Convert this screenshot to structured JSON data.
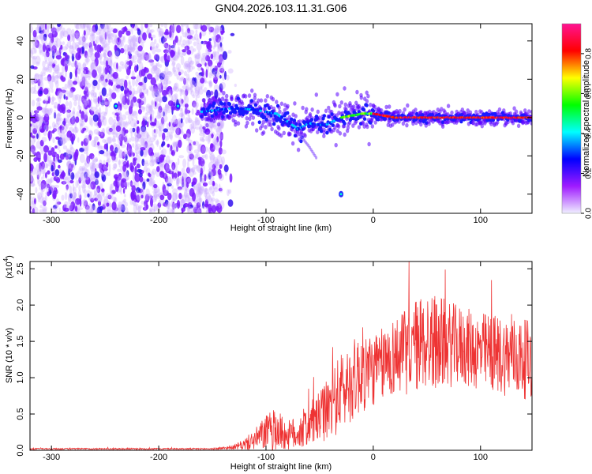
{
  "title": "GN04.2026.103.11.31.G06",
  "chart_data": [
    {
      "type": "heatmap",
      "title": "GN04.2026.103.11.31.G06",
      "xlabel": "Height of straight line (km)",
      "ylabel": "Frequency (Hz)",
      "xlim": [
        -320,
        148
      ],
      "ylim": [
        -50,
        49
      ],
      "xticks": [
        -300,
        -200,
        -100,
        0,
        100
      ],
      "yticks": [
        -40,
        -20,
        0,
        20,
        40
      ],
      "colorbar": {
        "label": "Normalized spectral amplitude",
        "range": [
          0.0,
          0.95
        ],
        "ticks": [
          0.0,
          0.2,
          0.4,
          0.6,
          0.8
        ],
        "colors": [
          "#f0f0ff",
          "#9f1bff",
          "#0000ff",
          "#00ffff",
          "#00ff00",
          "#ffff00",
          "#ff0000",
          "#ff1493"
        ]
      },
      "features": [
        {
          "name": "broadband-noise",
          "x_range": [
            -320,
            -140
          ],
          "y_range": [
            -50,
            49
          ],
          "amplitude": 0.1
        },
        {
          "name": "signal-track",
          "points": [
            [
              -160,
              3
            ],
            [
              -130,
              5
            ],
            [
              -110,
              4
            ],
            [
              -90,
              2
            ],
            [
              -80,
              -2
            ],
            [
              -70,
              -6
            ],
            [
              -60,
              -3
            ],
            [
              -45,
              -4
            ],
            [
              -30,
              0
            ],
            [
              -10,
              2
            ],
            [
              0,
              2
            ],
            [
              20,
              0
            ],
            [
              60,
              0
            ],
            [
              100,
              0
            ],
            [
              148,
              0
            ]
          ]
        },
        {
          "name": "side-trail",
          "points": [
            [
              -70,
              -8
            ],
            [
              -60,
              -15
            ],
            [
              -52,
              -22
            ]
          ]
        }
      ]
    },
    {
      "type": "line",
      "xlabel": "Height of straight line (km)",
      "ylabel": "SNR (10 * v/v)",
      "scale_label": "(x10",
      "scale_exponent": "4",
      "scale_close": ")",
      "xlim": [
        -320,
        148
      ],
      "ylim": [
        0,
        2.6
      ],
      "xticks": [
        -300,
        -200,
        -100,
        0,
        100
      ],
      "yticks": [
        0.0,
        0.5,
        1.0,
        1.5,
        2.0,
        2.5
      ],
      "color": "#ee3333",
      "envelope": {
        "x": [
          -320,
          -150,
          -130,
          -120,
          -110,
          -100,
          -90,
          -80,
          -70,
          -60,
          -50,
          -40,
          -30,
          -20,
          -10,
          0,
          10,
          20,
          30,
          40,
          50,
          60,
          70,
          80,
          90,
          100,
          110,
          120,
          130,
          140,
          148
        ],
        "mean": [
          0.02,
          0.02,
          0.04,
          0.08,
          0.15,
          0.25,
          0.28,
          0.2,
          0.25,
          0.35,
          0.45,
          0.6,
          0.8,
          0.95,
          1.1,
          1.1,
          1.2,
          1.3,
          1.35,
          1.45,
          1.5,
          1.5,
          1.45,
          1.45,
          1.4,
          1.35,
          1.35,
          1.3,
          1.3,
          1.25,
          1.25
        ],
        "spread": [
          0.01,
          0.01,
          0.03,
          0.08,
          0.15,
          0.25,
          0.3,
          0.2,
          0.25,
          0.3,
          0.35,
          0.45,
          0.55,
          0.55,
          0.6,
          0.5,
          0.5,
          0.55,
          0.6,
          0.65,
          0.7,
          0.65,
          0.6,
          0.55,
          0.55,
          0.55,
          0.55,
          0.55,
          0.55,
          0.55,
          0.55
        ],
        "peak": 2.6
      }
    }
  ]
}
